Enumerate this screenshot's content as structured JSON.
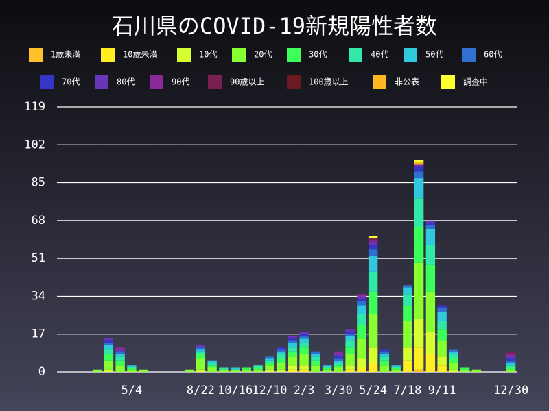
{
  "chart_data": {
    "type": "stacked_bar",
    "title": "石川県のCOVID-19新規陽性者数",
    "categories": [
      null,
      null,
      null,
      null,
      null,
      null,
      "5/4",
      null,
      null,
      null,
      null,
      null,
      "8/22",
      null,
      null,
      "10/16",
      null,
      null,
      "12/10",
      null,
      null,
      "2/3",
      null,
      null,
      "3/30",
      null,
      null,
      "5/24",
      null,
      null,
      "7/18",
      null,
      null,
      "9/11",
      null,
      null,
      null,
      null,
      null,
      "12/30"
    ],
    "ylim": [
      0,
      119
    ],
    "yticks": [
      0,
      17,
      34,
      51,
      68,
      85,
      102,
      119
    ],
    "grid": true,
    "legend": "top",
    "series": [
      {
        "name": "1歳未満",
        "color": "#ffc02a",
        "values": [
          0,
          0,
          0,
          0,
          0,
          0,
          0,
          0,
          0,
          0,
          0,
          0,
          0,
          0,
          0,
          0,
          0,
          0,
          0,
          0,
          0,
          0,
          0,
          0,
          0,
          0,
          0,
          0,
          0,
          0,
          0,
          1,
          0,
          0,
          0,
          0,
          0,
          0,
          0,
          0
        ]
      },
      {
        "name": "10歳未満",
        "color": "#ffee22",
        "values": [
          0,
          0,
          0,
          0,
          0,
          0,
          0,
          0,
          0,
          0,
          0,
          0,
          0,
          0,
          0,
          0,
          0,
          0,
          0,
          0,
          1,
          1,
          0,
          0,
          0,
          1,
          2,
          4,
          0,
          0,
          5,
          10,
          8,
          3,
          0,
          0,
          0,
          0,
          0,
          0
        ]
      },
      {
        "name": "10代",
        "color": "#d5ff30",
        "values": [
          0,
          0,
          0,
          0,
          1,
          0,
          0,
          0,
          0,
          0,
          0,
          0,
          1,
          0,
          0,
          0,
          0,
          0,
          1,
          1,
          2,
          2,
          0,
          0,
          0,
          2,
          4,
          7,
          0,
          0,
          6,
          13,
          10,
          4,
          1,
          0,
          0,
          0,
          0,
          0
        ]
      },
      {
        "name": "20代",
        "color": "#88ff30",
        "values": [
          0,
          0,
          0,
          1,
          4,
          3,
          1,
          1,
          0,
          0,
          0,
          1,
          5,
          2,
          1,
          1,
          1,
          1,
          2,
          3,
          4,
          5,
          3,
          1,
          2,
          5,
          9,
          15,
          3,
          1,
          12,
          25,
          18,
          7,
          3,
          1,
          1,
          0,
          0,
          1
        ]
      },
      {
        "name": "30代",
        "color": "#3dff5a",
        "values": [
          0,
          0,
          0,
          0,
          3,
          2,
          1,
          0,
          0,
          0,
          0,
          0,
          2,
          1,
          0,
          0,
          1,
          1,
          1,
          2,
          2,
          3,
          2,
          1,
          1,
          3,
          6,
          10,
          2,
          1,
          7,
          16,
          12,
          5,
          2,
          1,
          0,
          0,
          0,
          1
        ]
      },
      {
        "name": "40代",
        "color": "#30e8a8",
        "values": [
          0,
          0,
          0,
          0,
          2,
          2,
          0,
          0,
          0,
          0,
          0,
          0,
          1,
          1,
          1,
          0,
          0,
          1,
          1,
          2,
          2,
          2,
          2,
          0,
          1,
          3,
          5,
          9,
          2,
          0,
          5,
          13,
          9,
          4,
          2,
          0,
          0,
          0,
          0,
          1
        ]
      },
      {
        "name": "50代",
        "color": "#30c8dd",
        "values": [
          0,
          0,
          0,
          0,
          2,
          1,
          1,
          0,
          0,
          0,
          0,
          0,
          1,
          1,
          0,
          1,
          0,
          0,
          1,
          1,
          2,
          2,
          1,
          1,
          1,
          2,
          4,
          7,
          1,
          1,
          3,
          9,
          7,
          4,
          1,
          0,
          0,
          0,
          0,
          1
        ]
      },
      {
        "name": "60代",
        "color": "#3070d0",
        "values": [
          0,
          0,
          0,
          0,
          1,
          1,
          0,
          0,
          0,
          0,
          0,
          0,
          1,
          0,
          0,
          0,
          0,
          0,
          1,
          1,
          1,
          1,
          1,
          0,
          1,
          1,
          2,
          3,
          1,
          0,
          1,
          3,
          2,
          2,
          1,
          0,
          0,
          0,
          0,
          1
        ]
      },
      {
        "name": "70代",
        "color": "#3535c8",
        "values": [
          0,
          0,
          0,
          0,
          1,
          0,
          0,
          0,
          0,
          0,
          0,
          0,
          0,
          0,
          0,
          0,
          0,
          0,
          0,
          1,
          1,
          1,
          0,
          0,
          1,
          1,
          1,
          2,
          1,
          0,
          0,
          2,
          1,
          1,
          0,
          0,
          0,
          0,
          0,
          1
        ]
      },
      {
        "name": "80代",
        "color": "#6a35b8",
        "values": [
          0,
          0,
          0,
          0,
          1,
          1,
          0,
          0,
          0,
          0,
          0,
          0,
          1,
          0,
          0,
          0,
          0,
          0,
          0,
          0,
          1,
          1,
          0,
          0,
          1,
          1,
          1,
          1,
          0,
          0,
          0,
          1,
          1,
          0,
          0,
          0,
          0,
          0,
          0,
          1
        ]
      },
      {
        "name": "90代",
        "color": "#8a2a9a",
        "values": [
          0,
          0,
          0,
          0,
          0,
          1,
          0,
          0,
          0,
          0,
          0,
          0,
          0,
          0,
          0,
          0,
          0,
          0,
          0,
          0,
          0,
          0,
          0,
          0,
          1,
          0,
          1,
          1,
          0,
          0,
          0,
          0,
          0,
          0,
          0,
          0,
          0,
          0,
          0,
          1
        ]
      },
      {
        "name": "90歳以上",
        "color": "#7a2050",
        "values": [
          0,
          0,
          0,
          0,
          0,
          0,
          0,
          0,
          0,
          0,
          0,
          0,
          0,
          0,
          0,
          0,
          0,
          0,
          0,
          0,
          0,
          0,
          0,
          0,
          0,
          0,
          0,
          1,
          0,
          0,
          0,
          0,
          0,
          0,
          0,
          0,
          0,
          0,
          0,
          1
        ]
      },
      {
        "name": "100歳以上",
        "color": "#6a1a20",
        "values": [
          0,
          0,
          0,
          0,
          0,
          0,
          0,
          0,
          0,
          0,
          0,
          0,
          0,
          0,
          0,
          0,
          0,
          0,
          0,
          0,
          0,
          0,
          0,
          0,
          0,
          0,
          0,
          0,
          0,
          0,
          0,
          0,
          0,
          0,
          0,
          0,
          0,
          0,
          0,
          0
        ]
      },
      {
        "name": "非公表",
        "color": "#ffb820",
        "values": [
          0,
          0,
          0,
          0,
          0,
          0,
          0,
          0,
          0,
          0,
          0,
          0,
          0,
          0,
          0,
          0,
          0,
          0,
          0,
          0,
          0,
          0,
          0,
          0,
          0,
          0,
          0,
          0,
          0,
          0,
          0,
          1,
          0,
          0,
          0,
          0,
          0,
          0,
          0,
          0
        ]
      },
      {
        "name": "調査中",
        "color": "#ffff30",
        "values": [
          0,
          0,
          0,
          0,
          0,
          0,
          0,
          0,
          0,
          0,
          0,
          0,
          0,
          0,
          0,
          0,
          0,
          0,
          0,
          0,
          0,
          0,
          0,
          0,
          0,
          0,
          0,
          1,
          0,
          0,
          0,
          1,
          0,
          0,
          0,
          0,
          0,
          0,
          0,
          0
        ]
      }
    ]
  }
}
